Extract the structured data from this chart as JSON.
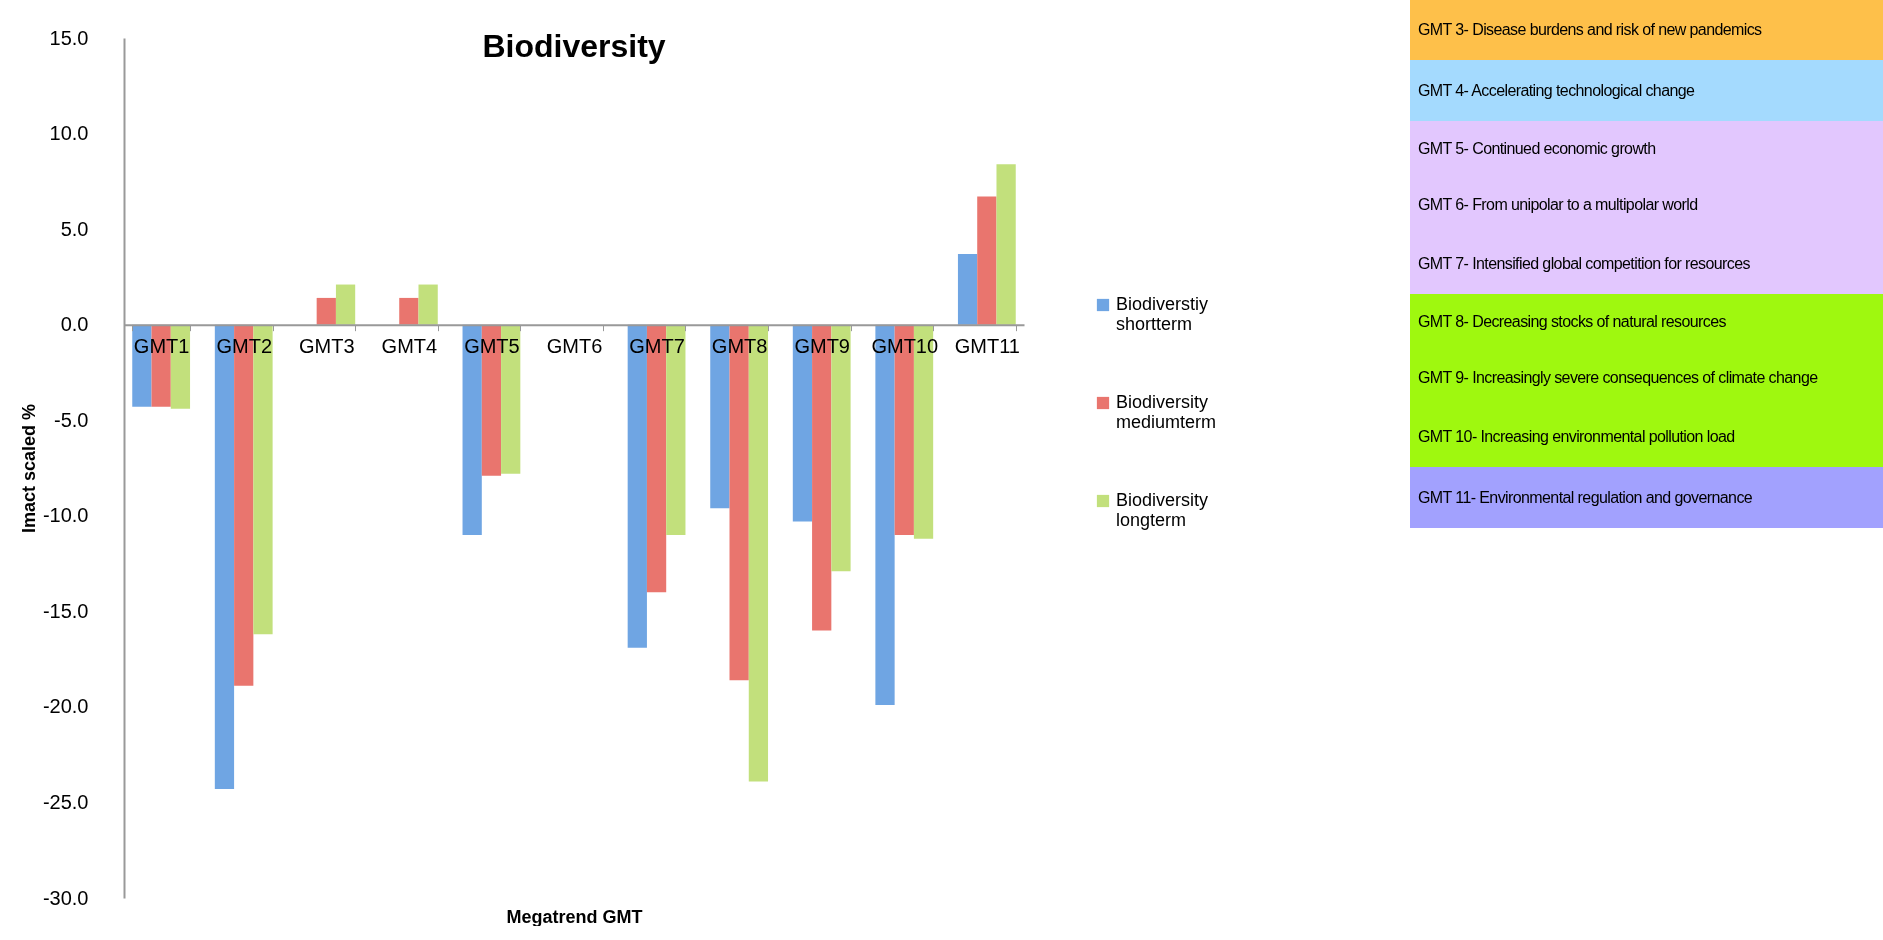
{
  "chart_data": {
    "type": "bar",
    "title": "Biodiversity",
    "xlabel": "Megatrend GMT",
    "ylabel": "Imact scaled %",
    "categories": [
      "GMT1",
      "GMT2",
      "GMT3",
      "GMT4",
      "GMT5",
      "GMT6",
      "GMT7",
      "GMT8",
      "GMT9",
      "GMT10",
      "GMT11"
    ],
    "series": [
      {
        "name": "Biodiverstiy shortterm",
        "color": "#6fa5e3",
        "values": [
          -4.3,
          -24.3,
          0,
          0,
          -11.0,
          0,
          -16.9,
          -9.6,
          -10.3,
          -19.9,
          3.7
        ]
      },
      {
        "name": "Biodiversity mediumterm",
        "color": "#e9756e",
        "values": [
          -4.3,
          -18.9,
          1.4,
          1.4,
          -7.9,
          0,
          -14.0,
          -18.6,
          -16.0,
          -11.0,
          6.7
        ]
      },
      {
        "name": "Biodiversity longterm",
        "color": "#c2e07c",
        "values": [
          -4.4,
          -16.2,
          2.1,
          2.1,
          -7.8,
          0,
          -11.0,
          -23.9,
          -12.9,
          -11.2,
          8.4
        ]
      }
    ],
    "ylim": [
      -30,
      15
    ],
    "yticks": [
      {
        "value": -30,
        "label": "-30.0"
      },
      {
        "value": -25,
        "label": "-25.0"
      },
      {
        "value": -20,
        "label": "-20.0"
      },
      {
        "value": -15,
        "label": "-15.0"
      },
      {
        "value": -10,
        "label": "-10.0"
      },
      {
        "value": -5,
        "label": "-5.0"
      },
      {
        "value": 0,
        "label": "0.0"
      },
      {
        "value": 5,
        "label": "5.0"
      },
      {
        "value": 10,
        "label": "10.0"
      },
      {
        "value": 15,
        "label": "15.0"
      }
    ],
    "grid": false,
    "legend": "right",
    "annotations": [
      "GMT 3- Disease burdens and risk of new pandemics",
      "GMT 4- Accelerating technological change",
      "GMT 5- Continued economic growth",
      "GMT 6- From unipolar to a multipolar world",
      "GMT 7- Intensified global competition for resources",
      "GMT 8- Decreasing stocks of natural resources",
      "GMT 9- Increasingly severe consequences of climate change",
      "GMT 10- Increasing environmental pollution load",
      "GMT 11- Environmental regulation and governance"
    ]
  }
}
